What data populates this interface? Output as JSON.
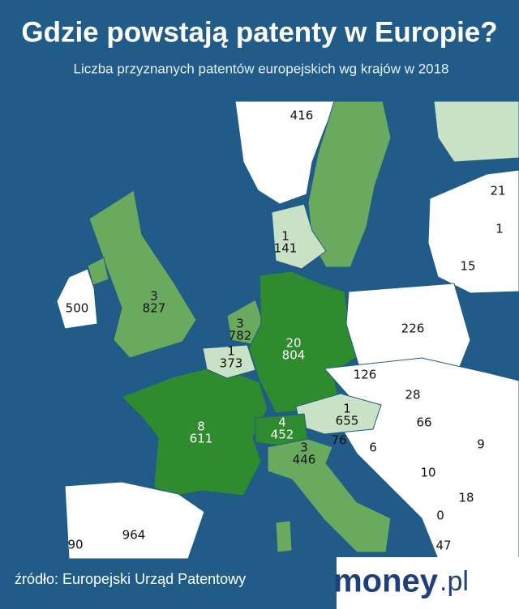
{
  "header": {
    "title": "Gdzie powstają patenty w Europie?",
    "subtitle": "Liczba przyznanych patentów europejskich wg krajów w 2018"
  },
  "labels": [
    {
      "lines": [
        "416"
      ]
    },
    {
      "lines": [
        "1",
        "141"
      ]
    },
    {
      "lines": [
        "21"
      ]
    },
    {
      "lines": [
        "1"
      ]
    },
    {
      "lines": [
        "15"
      ]
    },
    {
      "lines": [
        "500"
      ]
    },
    {
      "lines": [
        "3",
        "827"
      ]
    },
    {
      "lines": [
        "3",
        "782"
      ]
    },
    {
      "lines": [
        "20",
        "804"
      ]
    },
    {
      "lines": [
        "1",
        "373"
      ]
    },
    {
      "lines": [
        "226"
      ]
    },
    {
      "lines": [
        "126"
      ]
    },
    {
      "lines": [
        "28"
      ]
    },
    {
      "lines": [
        "1",
        "655"
      ]
    },
    {
      "lines": [
        "66"
      ]
    },
    {
      "lines": [
        "8",
        "611"
      ]
    },
    {
      "lines": [
        "4",
        "452"
      ]
    },
    {
      "lines": [
        "3",
        "446"
      ]
    },
    {
      "lines": [
        "76"
      ]
    },
    {
      "lines": [
        "6"
      ]
    },
    {
      "lines": [
        "9"
      ]
    },
    {
      "lines": [
        "10"
      ]
    },
    {
      "lines": [
        "18"
      ]
    },
    {
      "lines": [
        "0"
      ]
    },
    {
      "lines": [
        "964"
      ]
    },
    {
      "lines": [
        "90"
      ]
    },
    {
      "lines": [
        "47"
      ]
    }
  ],
  "footer": {
    "source": "źródło: Europejski Urząd Patentowy",
    "logo_main": "money",
    "logo_suffix": ".pl"
  }
}
